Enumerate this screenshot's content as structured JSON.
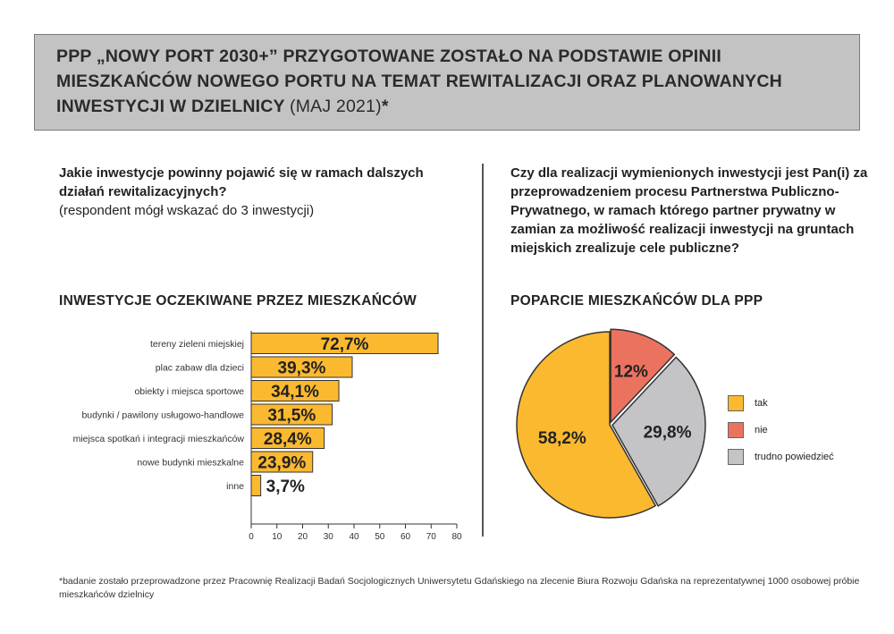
{
  "header": {
    "title": "PPP „NOWY PORT 2030+” PRZYGOTOWANE ZOSTAŁO NA PODSTAWIE OPINII MIESZKAŃCÓW NOWEGO PORTU NA TEMAT REWITALIZACJI ORAZ PLANOWANYCH INWESTYCJI W DZIELNICY",
    "date": "(MAJ 2021)",
    "asterisk": "*"
  },
  "left_question": {
    "bold": "Jakie inwestycje powinny pojawić się w ramach dalszych działań rewitalizacyjnych?",
    "note": "(respondent mógł wskazać do 3 inwestycji)"
  },
  "right_question": "Czy dla realizacji wymienionych inwestycji jest Pan(i) za przeprowadzeniem procesu Partnerstwa Publiczno-Prywatnego, w ramach którego partner prywatny w zamian za możliwość realizacji inwestycji na gruntach miejskich zrealizuje cele publiczne?",
  "colors": {
    "yellow": "#fbb92f",
    "red": "#ec7260",
    "gray": "#c4c4c6",
    "border": "#333333"
  },
  "chart_data": [
    {
      "type": "bar",
      "orientation": "horizontal",
      "title": "INWESTYCJE OCZEKIWANE PRZEZ MIESZKAŃCÓW",
      "categories": [
        "tereny zieleni miejskiej",
        "plac zabaw dla dzieci",
        "obiekty i miejsca sportowe",
        "budynki / pawilony usługowo-handlowe",
        "miejsca spotkań i integracji mieszkańców",
        "nowe budynki mieszkalne",
        "inne"
      ],
      "values": [
        72.7,
        39.3,
        34.1,
        31.5,
        28.4,
        23.9,
        3.7
      ],
      "labels": [
        "72,7%",
        "39,3%",
        "34,1%",
        "31,5%",
        "28,4%",
        "23,9%",
        "3,7%"
      ],
      "xlim": [
        0,
        80
      ],
      "xticks": [
        "0",
        "10",
        "20",
        "30",
        "40",
        "50",
        "60",
        "70",
        "80"
      ],
      "grid": false
    },
    {
      "type": "pie",
      "title": "POPARCIE MIESZKAŃCÓW DLA PPP",
      "categories": [
        "tak",
        "nie",
        "trudno powiedzieć"
      ],
      "values": [
        58.2,
        12,
        29.8
      ],
      "labels": [
        "58,2%",
        "12%",
        "29,8%"
      ],
      "colors": [
        "#fbb92f",
        "#ec7260",
        "#c4c4c6"
      ],
      "legend": "right"
    }
  ],
  "footnote": "*badanie zostało przeprowadzone przez Pracownię Realizacji Badań Socjologicznych Uniwersytetu Gdańskiego na zlecenie Biura Rozwoju Gdańska na reprezentatywnej 1000 osobowej próbie mieszkańców dzielnicy"
}
